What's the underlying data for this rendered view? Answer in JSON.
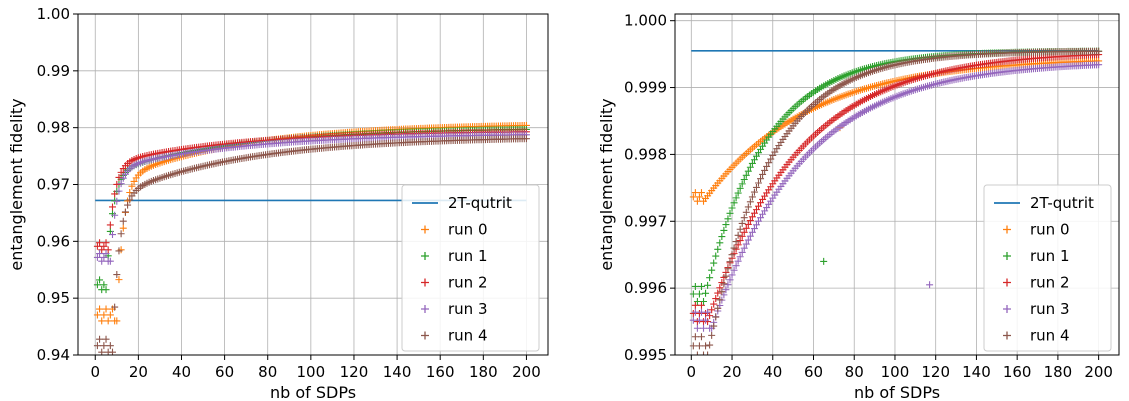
{
  "chart_data": [
    {
      "type": "scatter",
      "xlabel": "nb of SDPs",
      "ylabel": "entanglement fidelity",
      "xlim": [
        -8,
        210
      ],
      "ylim": [
        0.94,
        1.0
      ],
      "xticks": [
        "0",
        "20",
        "40",
        "60",
        "80",
        "100",
        "120",
        "140",
        "160",
        "180",
        "200"
      ],
      "yticks": [
        "0.94",
        "0.95",
        "0.96",
        "0.97",
        "0.98",
        "0.99",
        "1.00"
      ],
      "grid": true,
      "legend_position": "lower-right",
      "reference_line": {
        "name": "2T-qutrit",
        "y": 0.9672,
        "x": [
          0,
          200
        ],
        "color": "#1f77b4"
      },
      "series": [
        {
          "name": "run 0",
          "color": "#ff7f0e",
          "start": 0.946,
          "end": 0.9808,
          "k": 10,
          "tau": 3.0
        },
        {
          "name": "run 1",
          "color": "#2ca02c",
          "start": 0.9515,
          "end": 0.98,
          "k": 5,
          "tau": 3.0
        },
        {
          "name": "run 2",
          "color": "#d62728",
          "start": 0.9585,
          "end": 0.9795,
          "k": 6,
          "tau": 3.0
        },
        {
          "name": "run 3",
          "color": "#9467bd",
          "start": 0.9565,
          "end": 0.979,
          "k": 7,
          "tau": 3.0
        },
        {
          "name": "run 4",
          "color": "#8c564b",
          "start": 0.9405,
          "end": 0.9785,
          "k": 8,
          "tau": 3.0
        }
      ]
    },
    {
      "type": "scatter",
      "xlabel": "nb of SDPs",
      "ylabel": "entanglement fidelity",
      "xlim": [
        -8,
        210
      ],
      "ylim": [
        0.995,
        1.0001
      ],
      "xticks": [
        "0",
        "20",
        "40",
        "60",
        "80",
        "100",
        "120",
        "140",
        "160",
        "180",
        "200"
      ],
      "yticks": [
        "0.995",
        "0.996",
        "0.997",
        "0.998",
        "0.999",
        "1.000"
      ],
      "grid": true,
      "legend_position": "lower-right",
      "reference_line": {
        "name": "2T-qutrit",
        "y": 0.99955,
        "x": [
          0,
          200
        ],
        "color": "#1f77b4"
      },
      "series": [
        {
          "name": "run 0",
          "color": "#ff7f0e",
          "start": 0.9973,
          "end": 0.99945,
          "k": 6,
          "tau": 52,
          "outlier": [
            73,
            0.9984
          ]
        },
        {
          "name": "run 1",
          "color": "#2ca02c",
          "start": 0.9958,
          "end": 0.99955,
          "k": 6,
          "tau": 30,
          "outlier": [
            65,
            0.9964
          ]
        },
        {
          "name": "run 2",
          "color": "#d62728",
          "start": 0.9955,
          "end": 0.99955,
          "k": 8,
          "tau": 45,
          "outlier": null
        },
        {
          "name": "run 3",
          "color": "#9467bd",
          "start": 0.9954,
          "end": 0.9994,
          "k": 10,
          "tau": 45,
          "outlier": [
            117,
            0.99605
          ]
        },
        {
          "name": "run 4",
          "color": "#8c564b",
          "start": 0.995,
          "end": 0.99955,
          "k": 8,
          "tau": 30,
          "outlier": null
        }
      ]
    }
  ]
}
